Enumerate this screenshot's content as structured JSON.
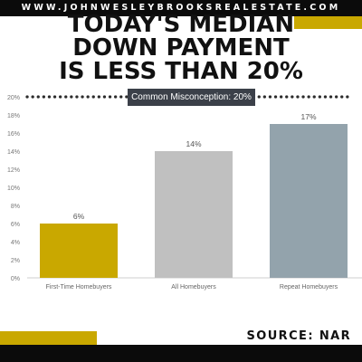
{
  "header": {
    "site_url": "WWW.JOHNWESLEYBROOKSREALESTATE.COM",
    "title_lines": [
      "TODAY'S MEDIAN",
      "DOWN PAYMENT",
      "IS LESS THAN 20%"
    ]
  },
  "colors": {
    "accent": "#c9a800",
    "bar_first_time": "#c9a800",
    "bar_all": "#c0c0c0",
    "bar_repeat": "#93a3ac",
    "dark": "#0b0b0b"
  },
  "misconception": {
    "label": "Common Misconception: 20%",
    "value": 20
  },
  "footer": {
    "source": "SOURCE: NAR"
  },
  "chart_data": {
    "type": "bar",
    "categories": [
      "First-Time Homebuyers",
      "All Homebuyers",
      "Repeat Homebuyers"
    ],
    "values": [
      6,
      14,
      17
    ],
    "data_labels": [
      "6%",
      "14%",
      "17%"
    ],
    "y_ticks": [
      "0%",
      "2%",
      "4%",
      "6%",
      "8%",
      "10%",
      "12%",
      "14%",
      "16%",
      "18%",
      "20%"
    ],
    "ylim": [
      0,
      20
    ],
    "grid": false,
    "reference_line": 20
  }
}
